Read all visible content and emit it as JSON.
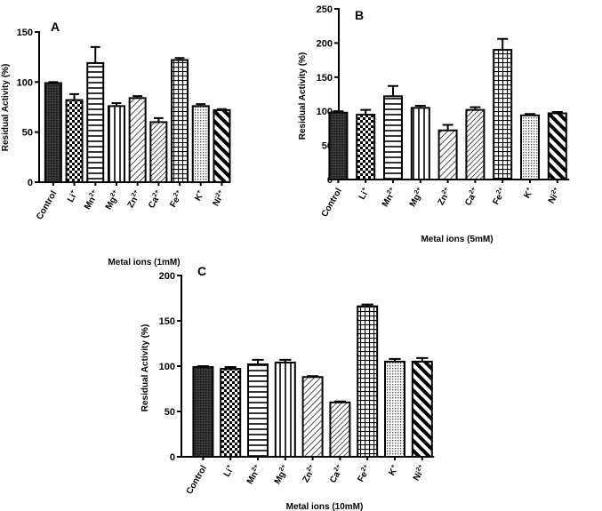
{
  "chart_data": [
    {
      "id": "A",
      "type": "bar",
      "panel_label": "A",
      "title": "",
      "xlabel": "Metal ions (1mM)",
      "ylabel": "Residual Activity (%)",
      "ylim": [
        0,
        150
      ],
      "yticks": [
        0,
        50,
        100,
        150
      ],
      "categories": [
        {
          "base": "Control",
          "sup": ""
        },
        {
          "base": "Li",
          "sup": "+"
        },
        {
          "base": "Mn",
          "sup": "2+"
        },
        {
          "base": "Mg",
          "sup": "2+"
        },
        {
          "base": "Zn",
          "sup": "2+"
        },
        {
          "base": "Ca",
          "sup": "2+"
        },
        {
          "base": "Fe",
          "sup": "2+"
        },
        {
          "base": "K",
          "sup": "+"
        },
        {
          "base": "Ni",
          "sup": "2+"
        }
      ],
      "values": [
        99,
        82,
        119,
        76,
        84,
        60,
        122,
        76,
        72
      ],
      "errors": [
        1,
        6,
        16,
        3,
        2,
        4,
        2,
        2,
        1
      ],
      "patterns": [
        "dense-dots",
        "checker",
        "horizontal",
        "vertical",
        "diagonal-right",
        "diagonal-right-dense",
        "grid",
        "dots",
        "diagonal-left-thick"
      ],
      "grid": false
    },
    {
      "id": "B",
      "type": "bar",
      "panel_label": "B",
      "title": "",
      "xlabel": "Metal ions (5mM)",
      "ylabel": "Residual Activity (%)",
      "ylim": [
        0,
        250
      ],
      "yticks": [
        0,
        50,
        100,
        150,
        200,
        250
      ],
      "categories": [
        {
          "base": "Control",
          "sup": ""
        },
        {
          "base": "Li",
          "sup": "+"
        },
        {
          "base": "Mn",
          "sup": "2+"
        },
        {
          "base": "Mg",
          "sup": "2+"
        },
        {
          "base": "Zn",
          "sup": "2+"
        },
        {
          "base": "Ca",
          "sup": "2+"
        },
        {
          "base": "Fe",
          "sup": "2+"
        },
        {
          "base": "K",
          "sup": "+"
        },
        {
          "base": "Ni",
          "sup": "2+"
        }
      ],
      "values": [
        98,
        95,
        122,
        105,
        72,
        102,
        190,
        94,
        97
      ],
      "errors": [
        2,
        7,
        15,
        3,
        8,
        4,
        16,
        2,
        2
      ],
      "patterns": [
        "dense-dots",
        "checker",
        "horizontal",
        "vertical",
        "diagonal-right",
        "diagonal-right-dense",
        "grid",
        "dots",
        "diagonal-left-thick"
      ],
      "grid": false
    },
    {
      "id": "C",
      "type": "bar",
      "panel_label": "C",
      "title": "",
      "xlabel": "Metal ions (10mM)",
      "ylabel": "Residual Activity (%)",
      "ylim": [
        0,
        200
      ],
      "yticks": [
        0,
        50,
        100,
        150,
        200
      ],
      "categories": [
        {
          "base": "Control",
          "sup": ""
        },
        {
          "base": "Li",
          "sup": "+"
        },
        {
          "base": "Mn",
          "sup": "2+"
        },
        {
          "base": "Mg",
          "sup": "2+"
        },
        {
          "base": "Zn",
          "sup": "2+"
        },
        {
          "base": "Ca",
          "sup": "2+"
        },
        {
          "base": "Fe",
          "sup": "2+"
        },
        {
          "base": "K",
          "sup": "+"
        },
        {
          "base": "Ni",
          "sup": "2+"
        }
      ],
      "values": [
        99,
        97,
        102,
        104,
        88,
        60,
        166,
        105,
        105
      ],
      "errors": [
        1,
        2,
        5,
        3,
        1,
        1,
        2,
        3,
        4
      ],
      "patterns": [
        "dense-dots",
        "checker",
        "horizontal",
        "vertical",
        "diagonal-right",
        "diagonal-right-dense",
        "grid",
        "dots",
        "diagonal-left-thick"
      ],
      "grid": false
    }
  ]
}
